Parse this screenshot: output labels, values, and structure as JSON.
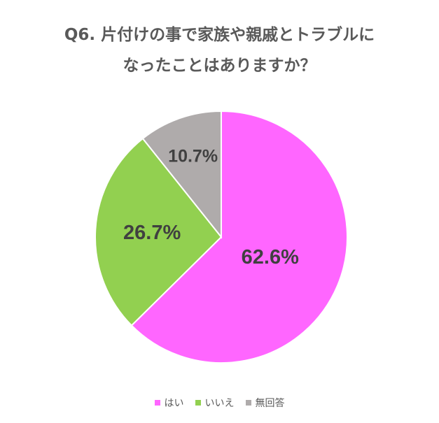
{
  "title": {
    "line1": "Q6. 片付けの事で家族や親戚とトラブルに",
    "line2": "なったことはありますか？"
  },
  "chart_data": {
    "type": "pie",
    "title": "Q6. 片付けの事で家族や親戚とトラブルになったことはありますか？",
    "slices": [
      {
        "label": "はい",
        "value": 62.6,
        "display": "62.6%",
        "color": "#FF66FF"
      },
      {
        "label": "いいえ",
        "value": 26.7,
        "display": "26.7%",
        "color": "#92D050"
      },
      {
        "label": "無回答",
        "value": 10.7,
        "display": "10.7%",
        "color": "#AFABAB"
      }
    ],
    "start_angle": "12 o'clock",
    "direction": "clockwise",
    "legend_position": "bottom"
  }
}
